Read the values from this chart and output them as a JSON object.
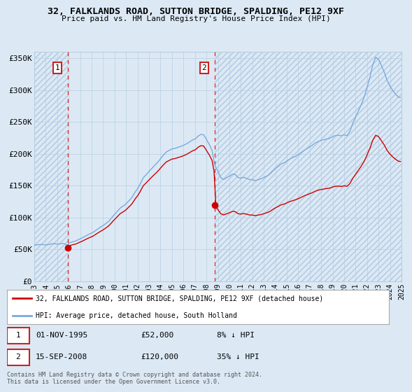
{
  "title": "32, FALKLANDS ROAD, SUTTON BRIDGE, SPALDING, PE12 9XF",
  "subtitle": "Price paid vs. HM Land Registry's House Price Index (HPI)",
  "background_color": "#dce9f5",
  "plot_bg_color": "#dce9f5",
  "grid_color": "#b8cfe0",
  "sale1_date": 1995.917,
  "sale1_price": 52000,
  "sale2_date": 2008.708,
  "sale2_price": 120000,
  "sale_color": "#cc0000",
  "hpi_color": "#7aaadd",
  "ylim_max": 360000,
  "ylim_min": 0,
  "xlim_min": 1993.0,
  "xlim_max": 2025.0,
  "legend1_label": "32, FALKLANDS ROAD, SUTTON BRIDGE, SPALDING, PE12 9XF (detached house)",
  "legend2_label": "HPI: Average price, detached house, South Holland",
  "footer": "Contains HM Land Registry data © Crown copyright and database right 2024.\nThis data is licensed under the Open Government Licence v3.0.",
  "yticks": [
    0,
    50000,
    100000,
    150000,
    200000,
    250000,
    300000,
    350000
  ],
  "ytick_labels": [
    "£0",
    "£50K",
    "£100K",
    "£150K",
    "£200K",
    "£250K",
    "£300K",
    "£350K"
  ],
  "xticks": [
    1993,
    1994,
    1995,
    1996,
    1997,
    1998,
    1999,
    2000,
    2001,
    2002,
    2003,
    2004,
    2005,
    2006,
    2007,
    2008,
    2009,
    2010,
    2011,
    2012,
    2013,
    2014,
    2015,
    2016,
    2017,
    2018,
    2019,
    2020,
    2021,
    2022,
    2023,
    2024,
    2025
  ]
}
